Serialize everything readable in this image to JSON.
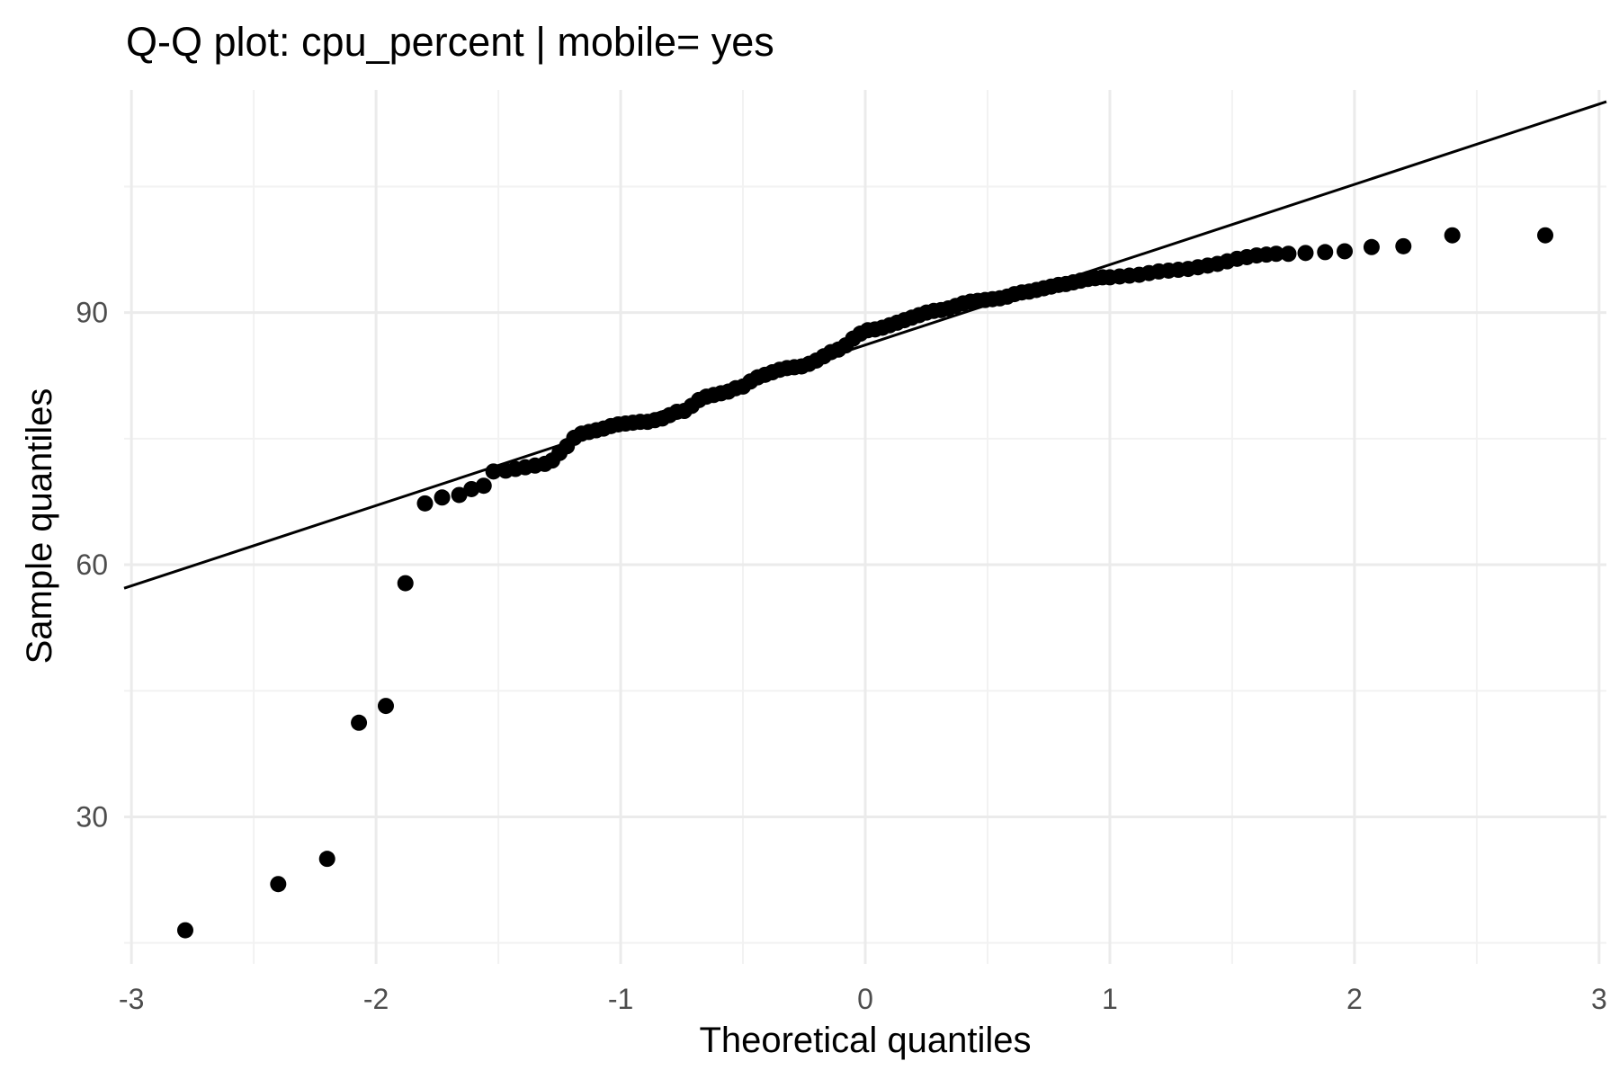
{
  "chart_data": {
    "type": "scatter",
    "title": "Q-Q plot: cpu_percent | mobile= yes",
    "xlabel": "Theoretical quantiles",
    "ylabel": "Sample quantiles",
    "xlim": [
      -3.03,
      3.03
    ],
    "ylim": [
      12.5,
      116.5
    ],
    "x_ticks": [
      -3,
      -2,
      -1,
      0,
      1,
      2,
      3
    ],
    "x_tick_labels": [
      "-3",
      "-2",
      "-1",
      "0",
      "1",
      "2",
      "3"
    ],
    "y_ticks": [
      30,
      60,
      90
    ],
    "y_tick_labels": [
      "30",
      "60",
      "90"
    ],
    "grid": true,
    "reference_line": {
      "points": [
        [
          -3.03,
          57.2
        ],
        [
          3.03,
          115.1
        ]
      ]
    },
    "points": [
      [
        -2.78,
        16.5
      ],
      [
        -2.4,
        22.0
      ],
      [
        -2.2,
        25.0
      ],
      [
        -2.07,
        41.2
      ],
      [
        -1.96,
        43.2
      ],
      [
        -1.88,
        57.8
      ],
      [
        -1.8,
        67.3
      ],
      [
        -1.73,
        68.0
      ],
      [
        -1.66,
        68.3
      ],
      [
        -1.61,
        69.0
      ],
      [
        -1.56,
        69.4
      ],
      [
        -1.52,
        71.1
      ],
      [
        -1.47,
        71.2
      ],
      [
        -1.43,
        71.4
      ],
      [
        -1.39,
        71.6
      ],
      [
        -1.35,
        71.8
      ],
      [
        -1.31,
        72.0
      ],
      [
        -1.28,
        72.4
      ],
      [
        -1.25,
        73.3
      ],
      [
        -1.22,
        74.1
      ],
      [
        -1.19,
        75.1
      ],
      [
        -1.16,
        75.6
      ],
      [
        -1.13,
        75.8
      ],
      [
        -1.1,
        76.0
      ],
      [
        -1.07,
        76.2
      ],
      [
        -1.04,
        76.5
      ],
      [
        -1.01,
        76.7
      ],
      [
        -0.98,
        76.8
      ],
      [
        -0.95,
        76.9
      ],
      [
        -0.92,
        77.0
      ],
      [
        -0.89,
        77.0
      ],
      [
        -0.86,
        77.2
      ],
      [
        -0.83,
        77.4
      ],
      [
        -0.8,
        77.8
      ],
      [
        -0.77,
        78.2
      ],
      [
        -0.74,
        78.3
      ],
      [
        -0.71,
        78.9
      ],
      [
        -0.68,
        79.6
      ],
      [
        -0.65,
        80.0
      ],
      [
        -0.62,
        80.2
      ],
      [
        -0.59,
        80.4
      ],
      [
        -0.56,
        80.6
      ],
      [
        -0.53,
        81.0
      ],
      [
        -0.5,
        81.2
      ],
      [
        -0.47,
        81.8
      ],
      [
        -0.44,
        82.3
      ],
      [
        -0.41,
        82.6
      ],
      [
        -0.38,
        82.9
      ],
      [
        -0.35,
        83.2
      ],
      [
        -0.32,
        83.4
      ],
      [
        -0.29,
        83.5
      ],
      [
        -0.26,
        83.6
      ],
      [
        -0.23,
        83.9
      ],
      [
        -0.2,
        84.3
      ],
      [
        -0.17,
        84.8
      ],
      [
        -0.14,
        85.3
      ],
      [
        -0.11,
        85.6
      ],
      [
        -0.08,
        86.1
      ],
      [
        -0.05,
        86.9
      ],
      [
        -0.02,
        87.5
      ],
      [
        0.01,
        87.9
      ],
      [
        0.04,
        88.0
      ],
      [
        0.07,
        88.2
      ],
      [
        0.1,
        88.5
      ],
      [
        0.13,
        88.8
      ],
      [
        0.16,
        89.1
      ],
      [
        0.19,
        89.4
      ],
      [
        0.22,
        89.7
      ],
      [
        0.25,
        90.0
      ],
      [
        0.28,
        90.2
      ],
      [
        0.31,
        90.3
      ],
      [
        0.34,
        90.5
      ],
      [
        0.37,
        90.8
      ],
      [
        0.4,
        91.1
      ],
      [
        0.43,
        91.3
      ],
      [
        0.46,
        91.4
      ],
      [
        0.49,
        91.5
      ],
      [
        0.52,
        91.6
      ],
      [
        0.55,
        91.7
      ],
      [
        0.58,
        91.9
      ],
      [
        0.61,
        92.2
      ],
      [
        0.64,
        92.4
      ],
      [
        0.67,
        92.5
      ],
      [
        0.7,
        92.7
      ],
      [
        0.73,
        92.9
      ],
      [
        0.76,
        93.1
      ],
      [
        0.79,
        93.3
      ],
      [
        0.82,
        93.4
      ],
      [
        0.85,
        93.6
      ],
      [
        0.88,
        93.8
      ],
      [
        0.91,
        94.0
      ],
      [
        0.94,
        94.1
      ],
      [
        0.97,
        94.2
      ],
      [
        1.0,
        94.2
      ],
      [
        1.04,
        94.3
      ],
      [
        1.08,
        94.4
      ],
      [
        1.12,
        94.5
      ],
      [
        1.16,
        94.7
      ],
      [
        1.2,
        94.9
      ],
      [
        1.24,
        95.0
      ],
      [
        1.28,
        95.1
      ],
      [
        1.32,
        95.2
      ],
      [
        1.36,
        95.4
      ],
      [
        1.4,
        95.6
      ],
      [
        1.44,
        95.8
      ],
      [
        1.48,
        96.1
      ],
      [
        1.52,
        96.4
      ],
      [
        1.56,
        96.6
      ],
      [
        1.6,
        96.8
      ],
      [
        1.64,
        96.9
      ],
      [
        1.68,
        97.0
      ],
      [
        1.73,
        97.0
      ],
      [
        1.8,
        97.1
      ],
      [
        1.88,
        97.2
      ],
      [
        1.96,
        97.3
      ],
      [
        2.07,
        97.8
      ],
      [
        2.2,
        97.9
      ],
      [
        2.4,
        99.2
      ],
      [
        2.78,
        99.2
      ]
    ]
  }
}
